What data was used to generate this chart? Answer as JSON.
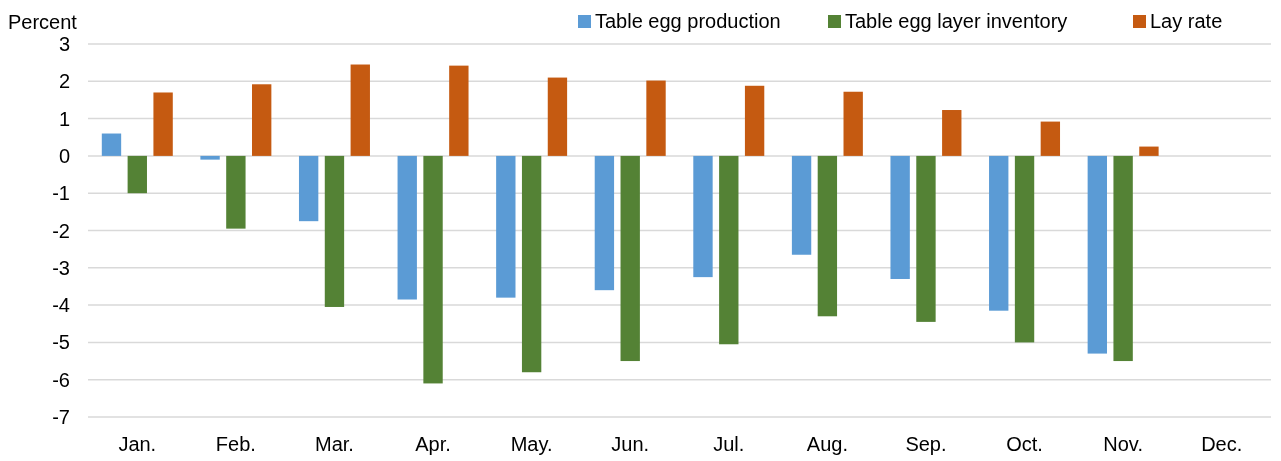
{
  "chart_data": {
    "type": "bar",
    "ylabel": "Percent",
    "categories": [
      "Jan.",
      "Feb.",
      "Mar.",
      "Apr.",
      "May.",
      "Jun.",
      "Jul.",
      "Aug.",
      "Sep.",
      "Oct.",
      "Nov.",
      "Dec."
    ],
    "series": [
      {
        "name": "Table egg production",
        "color": "#5b9bd5",
        "values": [
          0.6,
          -0.1,
          -1.75,
          -3.85,
          -3.8,
          -3.6,
          -3.25,
          -2.65,
          -3.3,
          -4.15,
          -5.3,
          null
        ]
      },
      {
        "name": "Table egg layer inventory",
        "color": "#548235",
        "values": [
          -1.0,
          -1.95,
          -4.05,
          -6.1,
          -5.8,
          -5.5,
          -5.05,
          -4.3,
          -4.45,
          -5.0,
          -5.5,
          null
        ]
      },
      {
        "name": "Lay rate",
        "color": "#c55a11",
        "values": [
          1.7,
          1.92,
          2.45,
          2.42,
          2.1,
          2.02,
          1.88,
          1.72,
          1.23,
          0.92,
          0.25,
          null
        ]
      }
    ],
    "ylim": [
      -7,
      3
    ],
    "yticks": [
      -7,
      -6,
      -5,
      -4,
      -3,
      -2,
      -1,
      0,
      1,
      2,
      3
    ],
    "grid": "y",
    "legend": "top right"
  }
}
